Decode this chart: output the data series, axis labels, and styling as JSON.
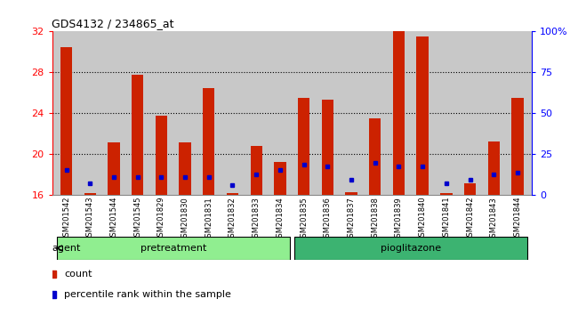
{
  "title": "GDS4132 / 234865_at",
  "samples": [
    "GSM201542",
    "GSM201543",
    "GSM201544",
    "GSM201545",
    "GSM201829",
    "GSM201830",
    "GSM201831",
    "GSM201832",
    "GSM201833",
    "GSM201834",
    "GSM201835",
    "GSM201836",
    "GSM201837",
    "GSM201838",
    "GSM201839",
    "GSM201840",
    "GSM201841",
    "GSM201842",
    "GSM201843",
    "GSM201844"
  ],
  "red_bar_heights": [
    30.5,
    16.2,
    21.2,
    27.8,
    23.8,
    21.2,
    26.5,
    16.2,
    20.8,
    19.3,
    25.5,
    25.3,
    16.3,
    23.5,
    32.0,
    31.5,
    16.2,
    17.2,
    21.3,
    25.5
  ],
  "blue_dot_values": [
    18.5,
    17.2,
    17.8,
    17.8,
    17.8,
    17.8,
    17.8,
    17.0,
    18.0,
    18.5,
    19.0,
    18.8,
    17.5,
    19.2,
    18.8,
    18.8,
    17.2,
    17.5,
    18.0,
    18.2
  ],
  "ylim": [
    16,
    32
  ],
  "yticks_left": [
    16,
    20,
    24,
    28,
    32
  ],
  "right_tick_positions": [
    16,
    20,
    24,
    28,
    32
  ],
  "right_tick_labels": [
    "0",
    "25",
    "50",
    "75",
    "100%"
  ],
  "pretreatment_indices": [
    0,
    9
  ],
  "pioglitazone_indices": [
    10,
    19
  ],
  "pretreatment_color": "#90ee90",
  "pioglitazone_color": "#3cb371",
  "bar_color": "#cc2200",
  "dot_color": "#0000cc",
  "bg_color": "#c8c8c8",
  "legend_count_label": "count",
  "legend_pct_label": "percentile rank within the sample",
  "agent_label": "agent",
  "bar_width": 0.5
}
